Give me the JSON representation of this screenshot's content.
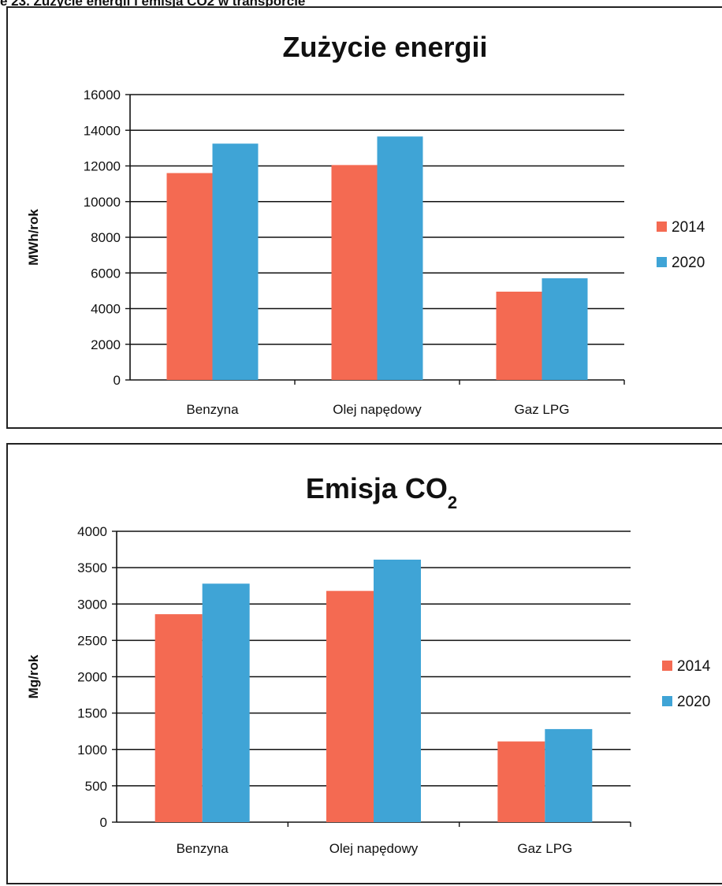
{
  "caption": "e 23. Zużycie energii i emisja CO2 w transporcie",
  "chart_data": [
    {
      "type": "bar",
      "title": "Zużycie energii",
      "title_sub": "",
      "ylabel": "MWh/rok",
      "xlabel": "",
      "categories": [
        "Benzyna",
        "Olej napędowy",
        "Gaz LPG"
      ],
      "ylim": [
        0,
        16000
      ],
      "yticks": [
        0,
        2000,
        4000,
        6000,
        8000,
        10000,
        12000,
        14000,
        16000
      ],
      "grid": true,
      "legend_position": "right",
      "series": [
        {
          "name": "2014",
          "color": "#f46a52",
          "values": [
            11600,
            12050,
            4950
          ]
        },
        {
          "name": "2020",
          "color": "#3fa4d6",
          "values": [
            13250,
            13650,
            5700
          ]
        }
      ]
    },
    {
      "type": "bar",
      "title": "Emisja CO",
      "title_sub": "2",
      "ylabel": "Mg/rok",
      "xlabel": "",
      "categories": [
        "Benzyna",
        "Olej napędowy",
        "Gaz LPG"
      ],
      "ylim": [
        0,
        4000
      ],
      "yticks": [
        0,
        500,
        1000,
        1500,
        2000,
        2500,
        3000,
        3500,
        4000
      ],
      "grid": true,
      "legend_position": "right",
      "series": [
        {
          "name": "2014",
          "color": "#f46a52",
          "values": [
            2860,
            3180,
            1110
          ]
        },
        {
          "name": "2020",
          "color": "#3fa4d6",
          "values": [
            3280,
            3610,
            1280
          ]
        }
      ]
    }
  ]
}
